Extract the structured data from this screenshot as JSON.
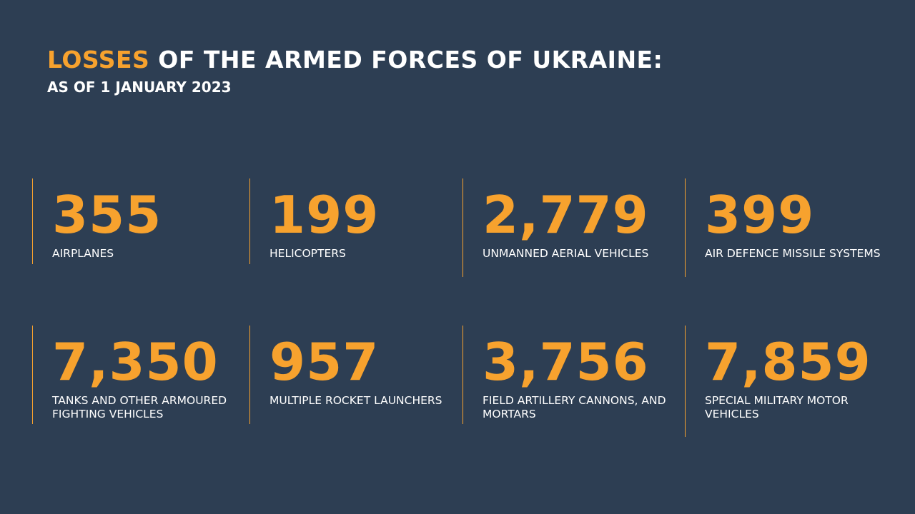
{
  "header": {
    "title_highlight": "LOSSES",
    "title_rest": "OF THE ARMED FORCES OF UKRAINE:",
    "subtitle": "AS OF 1 JANUARY 2023"
  },
  "items": [
    {
      "number": "355",
      "label": "AIRPLANES"
    },
    {
      "number": "199",
      "label": "HELICOPTERS"
    },
    {
      "number": "2,779",
      "label": "UNMANNED AERIAL VEHICLES"
    },
    {
      "number": "399",
      "label": "AIR DEFENCE MISSILE SYSTEMS"
    },
    {
      "number": "7,350",
      "label": "TANKS AND OTHER ARMOURED FIGHTING VEHICLES"
    },
    {
      "number": "957",
      "label": "MULTIPLE ROCKET LAUNCHERS"
    },
    {
      "number": "3,756",
      "label": "FIELD ARTILLERY CANNONS, AND MORTARS"
    },
    {
      "number": "7,859",
      "label": "SPECIAL MILITARY MOTOR VEHICLES"
    }
  ]
}
